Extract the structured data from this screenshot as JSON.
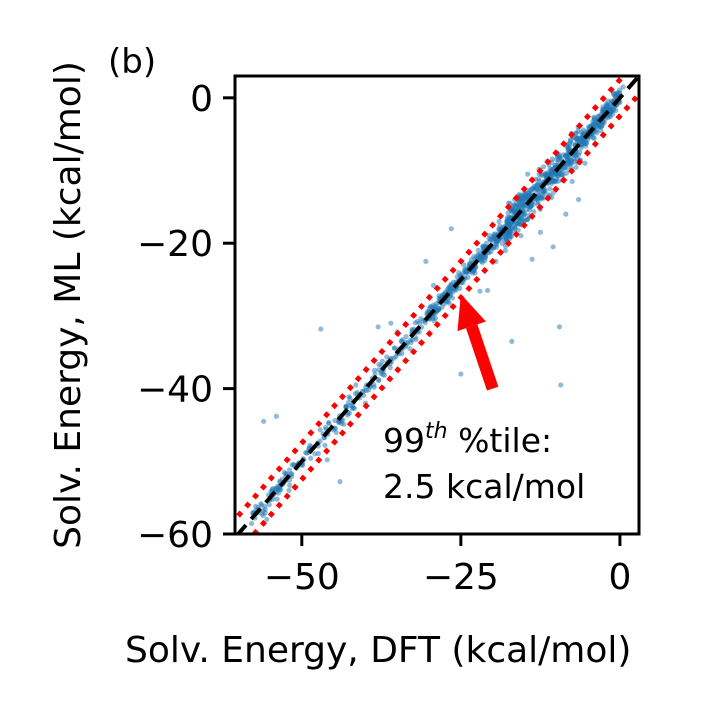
{
  "panel_label": "(b)",
  "chart_data": {
    "type": "scatter",
    "title": "",
    "xlabel": "Solv. Energy, DFT (kcal/mol)",
    "ylabel": "Solv. Energy, ML (kcal/mol)",
    "xlim": [
      -60.5,
      3
    ],
    "ylim": [
      -60,
      3
    ],
    "x_ticks": [
      -50,
      -25,
      0
    ],
    "x_tick_labels": [
      "−50",
      "−25",
      "0"
    ],
    "y_ticks": [
      0,
      -20,
      -40,
      -60
    ],
    "y_tick_labels": [
      "0",
      "−20",
      "−40",
      "−60"
    ],
    "grid": false,
    "legend": "none",
    "parity_line": {
      "slope": 1,
      "intercept": 0,
      "color": "#000000",
      "style": "dashed"
    },
    "percentile_band": {
      "offset": 2.5,
      "color": "#ff0000",
      "style": "dotted"
    },
    "point_color": "#1f77b4",
    "annotation": {
      "line1_base": "99",
      "line1_sup": "th",
      "line1_rest": " %tile:",
      "line2": "2.5 kcal/mol",
      "arrow_color": "#ff0000",
      "arrow_tail": [
        -20,
        -40
      ],
      "arrow_head": [
        -25,
        -27
      ]
    },
    "points": [
      [
        -56,
        -44.5
      ],
      [
        -54,
        -43.8
      ],
      [
        -47,
        -31.8
      ],
      [
        -44,
        -52.8
      ],
      [
        -38,
        -31.5
      ],
      [
        -35,
        -32.2
      ],
      [
        -26.5,
        -18.0
      ],
      [
        -25,
        -38.0
      ],
      [
        -22,
        -26.6
      ],
      [
        -17,
        -33.5
      ],
      [
        -9.5,
        -31.5
      ],
      [
        -9.3,
        -39.5
      ],
      [
        -10.5,
        -20.5
      ],
      [
        -8.5,
        -16.0
      ],
      [
        -5.5,
        -9.0
      ],
      [
        -6.5,
        -14.0
      ],
      [
        -12.5,
        -18.5
      ],
      [
        -19.5,
        -22.5
      ],
      [
        -18.0,
        -21.0
      ],
      [
        -13.8,
        -22.2
      ],
      [
        -15.5,
        -16.5
      ],
      [
        -20.8,
        -26.5
      ],
      [
        -30.5,
        -22.5
      ],
      [
        -29.3,
        -25.8
      ],
      [
        -36.0,
        -31.0
      ],
      [
        -40.0,
        -42.0
      ],
      [
        -44.0,
        -44.5
      ],
      [
        -48.5,
        -48.0
      ],
      [
        -52.0,
        -54.0
      ],
      [
        -55.5,
        -58.0
      ],
      [
        -46.0,
        -49.8
      ],
      [
        -41.5,
        -39.5
      ],
      [
        -33.0,
        -34.5
      ],
      [
        -27.0,
        -28.0
      ],
      [
        -23.0,
        -23.5
      ],
      [
        -16.0,
        -13.5
      ],
      [
        -12.0,
        -9.5
      ],
      [
        -10.0,
        -7.5
      ],
      [
        -8.0,
        -8.5
      ],
      [
        -6.0,
        -5.5
      ],
      [
        -4.0,
        -3.0
      ],
      [
        -3.0,
        -4.5
      ],
      [
        -2.0,
        -1.0
      ],
      [
        -1.0,
        0.5
      ],
      [
        0.5,
        1.5
      ],
      [
        -7.5,
        -11.5
      ],
      [
        -11.0,
        -12.5
      ],
      [
        -14.5,
        -10.5
      ],
      [
        -9.0,
        -10.0
      ],
      [
        -13.0,
        -12.0
      ],
      [
        -17.5,
        -14.5
      ],
      [
        -19.0,
        -17.0
      ],
      [
        -21.0,
        -20.0
      ],
      [
        -24.5,
        -23.0
      ],
      [
        -28.0,
        -27.5
      ],
      [
        -31.5,
        -31.0
      ],
      [
        -35.5,
        -35.8
      ],
      [
        -38.5,
        -38.0
      ],
      [
        -43.0,
        -42.5
      ],
      [
        -50.0,
        -50.5
      ]
    ]
  }
}
